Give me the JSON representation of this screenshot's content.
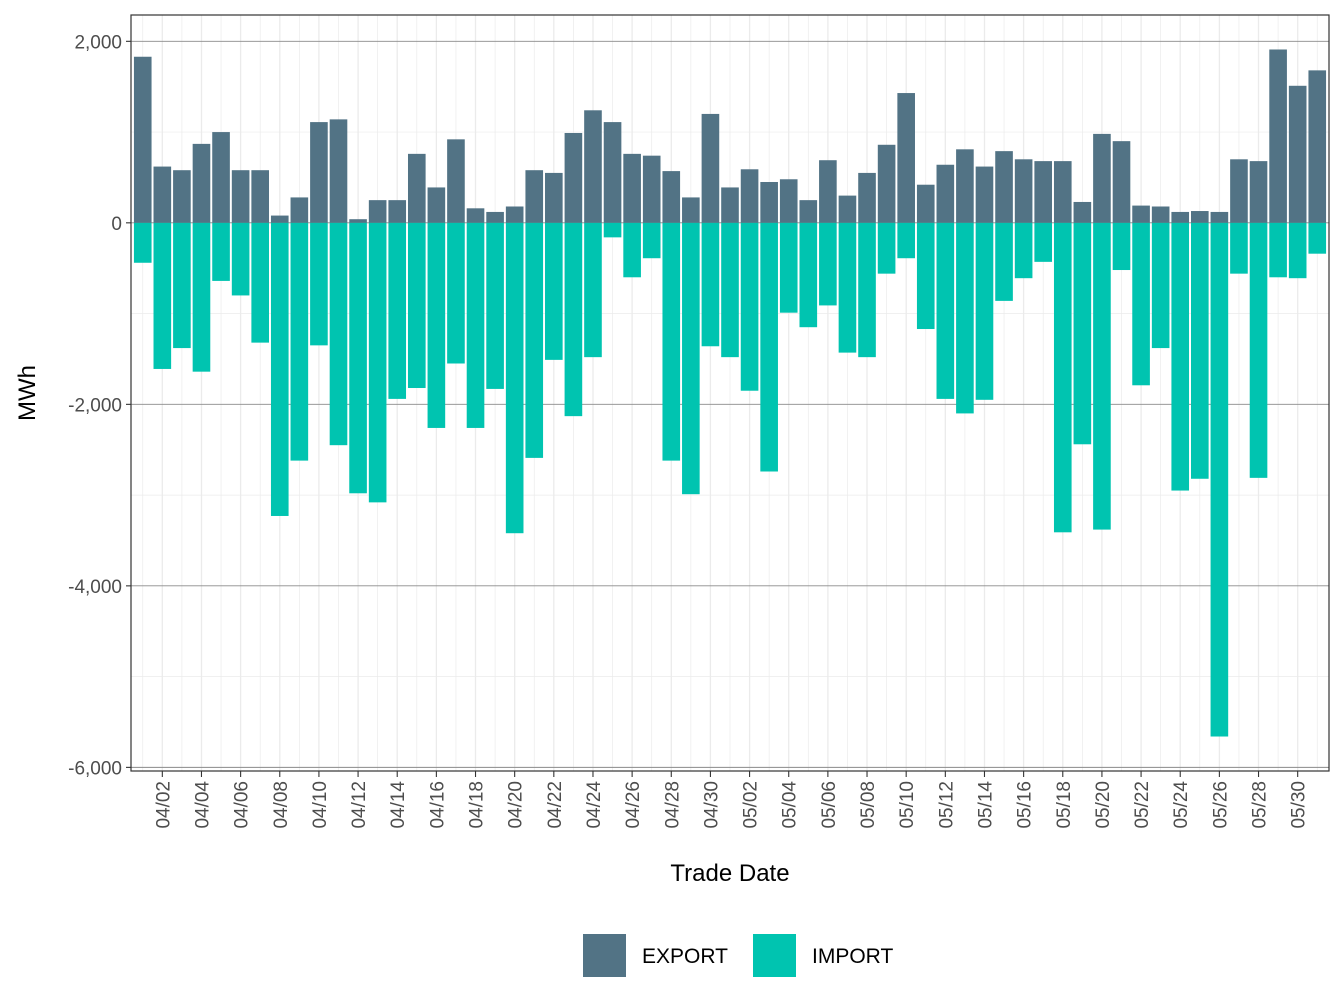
{
  "chart_data": {
    "type": "bar",
    "title": "",
    "xlabel": "Trade Date",
    "ylabel": "MWh",
    "ylim": [
      -6000,
      2000
    ],
    "yticks": [
      {
        "value": 2000,
        "label": "2,000"
      },
      {
        "value": 0,
        "label": "0"
      },
      {
        "value": -2000,
        "label": "-2,000"
      },
      {
        "value": -4000,
        "label": "-4,000"
      },
      {
        "value": -6000,
        "label": "-6,000"
      }
    ],
    "categories": [
      "04/01",
      "04/02",
      "04/03",
      "04/04",
      "04/05",
      "04/06",
      "04/07",
      "04/08",
      "04/09",
      "04/10",
      "04/11",
      "04/12",
      "04/13",
      "04/14",
      "04/15",
      "04/16",
      "04/17",
      "04/18",
      "04/19",
      "04/20",
      "04/21",
      "04/22",
      "04/23",
      "04/24",
      "04/25",
      "04/26",
      "04/27",
      "04/28",
      "04/29",
      "04/30",
      "05/01",
      "05/02",
      "05/03",
      "05/04",
      "05/05",
      "05/06",
      "05/07",
      "05/08",
      "05/09",
      "05/10",
      "05/11",
      "05/12",
      "05/13",
      "05/14",
      "05/15",
      "05/16",
      "05/17",
      "05/18",
      "05/19",
      "05/20",
      "05/21",
      "05/22",
      "05/23",
      "05/24",
      "05/25",
      "05/26",
      "05/27",
      "05/28",
      "05/29",
      "05/30",
      "05/31"
    ],
    "xtick_labels": [
      "04/02",
      "04/04",
      "04/06",
      "04/08",
      "04/10",
      "04/12",
      "04/14",
      "04/16",
      "04/18",
      "04/20",
      "04/22",
      "04/24",
      "04/26",
      "04/28",
      "04/30",
      "05/02",
      "05/04",
      "05/06",
      "05/08",
      "05/10",
      "05/12",
      "05/14",
      "05/16",
      "05/18",
      "05/20",
      "05/22",
      "05/24",
      "05/26",
      "05/28",
      "05/30"
    ],
    "series": [
      {
        "name": "EXPORT",
        "color": "#527385",
        "values": [
          1830,
          620,
          580,
          870,
          1000,
          580,
          580,
          80,
          280,
          1110,
          1140,
          40,
          250,
          250,
          760,
          390,
          920,
          160,
          120,
          180,
          580,
          550,
          990,
          1240,
          1110,
          760,
          740,
          570,
          280,
          1200,
          390,
          590,
          450,
          480,
          250,
          690,
          300,
          550,
          860,
          1430,
          420,
          640,
          810,
          620,
          790,
          700,
          680,
          680,
          230,
          980,
          900,
          190,
          180,
          120,
          130,
          120,
          700,
          680,
          1910,
          1510,
          1680
        ]
      },
      {
        "name": "IMPORT",
        "color": "#00c4b0",
        "values": [
          -440,
          -1610,
          -1380,
          -1640,
          -640,
          -800,
          -1320,
          -3230,
          -2620,
          -1350,
          -2450,
          -2980,
          -3080,
          -1940,
          -1820,
          -2260,
          -1550,
          -2260,
          -1830,
          -3420,
          -2590,
          -1510,
          -2130,
          -1480,
          -160,
          -600,
          -390,
          -2620,
          -2990,
          -1360,
          -1480,
          -1850,
          -2740,
          -990,
          -1150,
          -910,
          -1430,
          -1480,
          -560,
          -390,
          -1170,
          -1940,
          -2100,
          -1950,
          -860,
          -610,
          -430,
          -3410,
          -2440,
          -3380,
          -520,
          -1790,
          -1380,
          -2950,
          -2820,
          -5660,
          -560,
          -2810,
          -600,
          -610,
          -340
        ]
      }
    ],
    "legend": {
      "position": "bottom",
      "items": [
        "EXPORT",
        "IMPORT"
      ]
    },
    "grid": true
  }
}
